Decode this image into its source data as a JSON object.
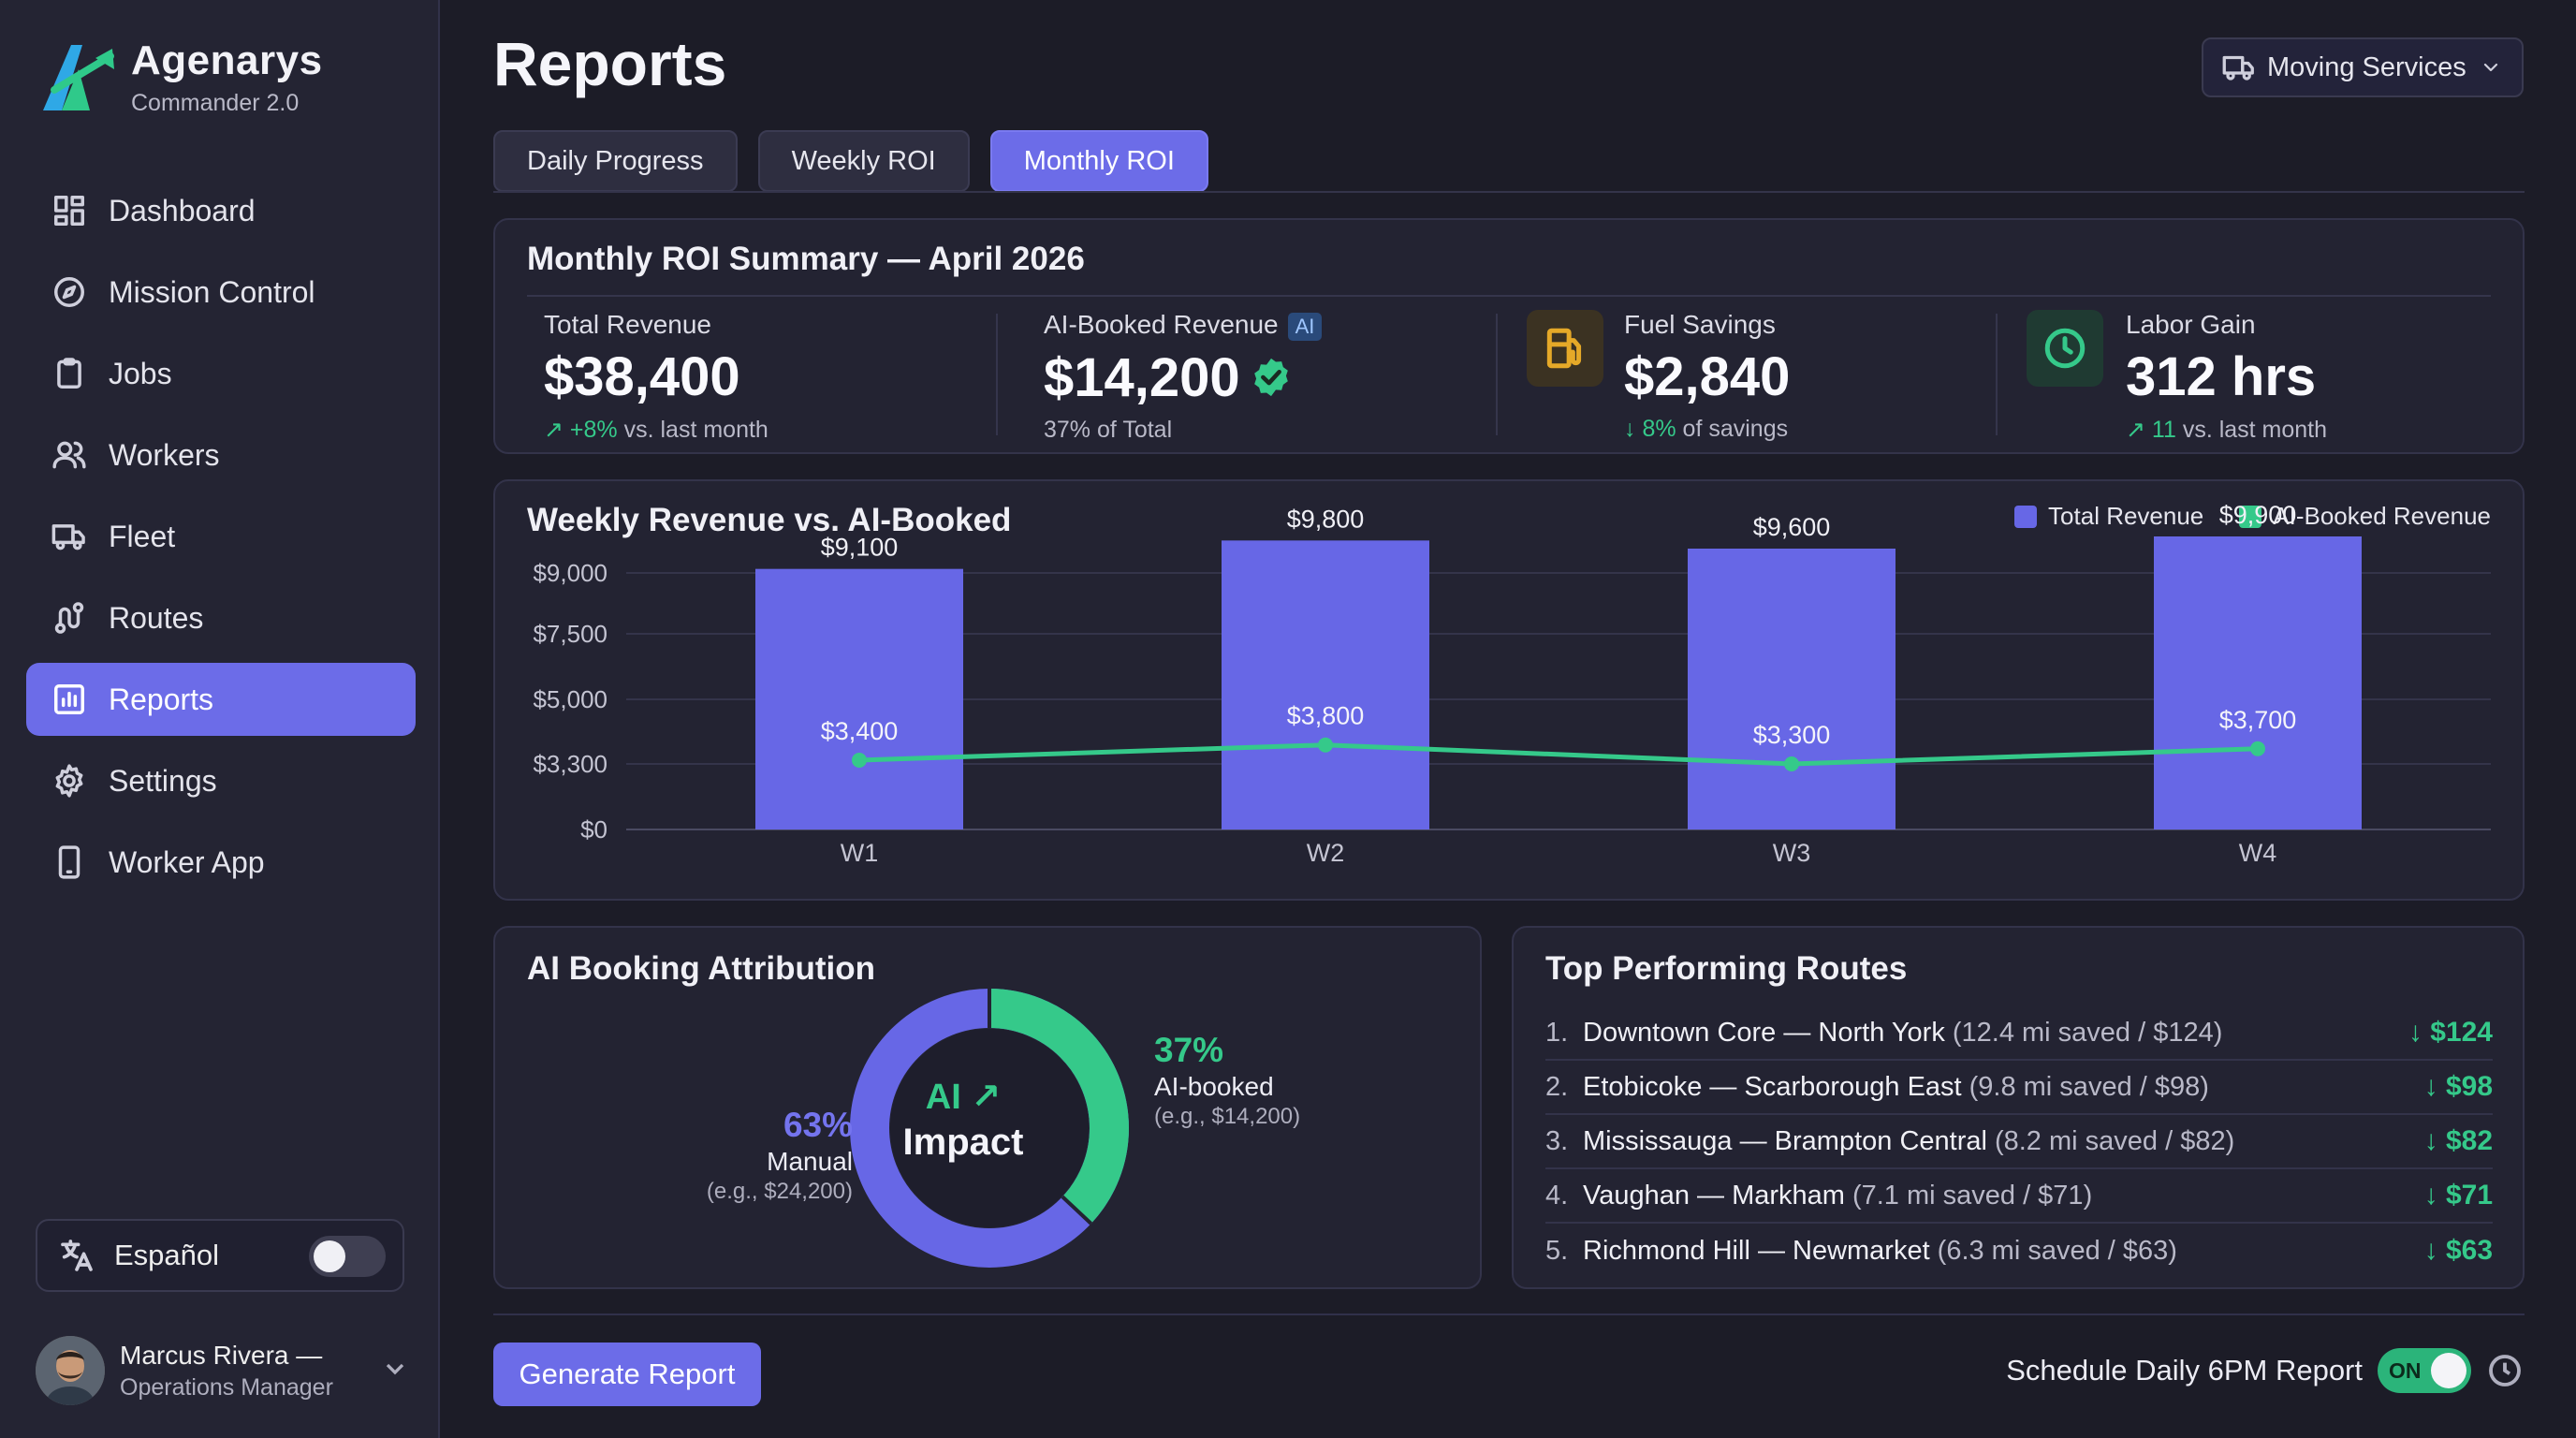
{
  "brand": {
    "name": "Agenarys",
    "subtitle": "Commander 2.0"
  },
  "sidebar": {
    "items": [
      {
        "label": "Dashboard",
        "icon": "dashboard-icon"
      },
      {
        "label": "Mission Control",
        "icon": "compass-icon"
      },
      {
        "label": "Jobs",
        "icon": "clipboard-icon"
      },
      {
        "label": "Workers",
        "icon": "users-icon"
      },
      {
        "label": "Fleet",
        "icon": "truck-icon"
      },
      {
        "label": "Routes",
        "icon": "route-icon"
      },
      {
        "label": "Reports",
        "icon": "reports-icon",
        "active": true
      },
      {
        "label": "Settings",
        "icon": "gear-icon"
      },
      {
        "label": "Worker App",
        "icon": "phone-icon"
      }
    ],
    "language": {
      "label": "Español",
      "enabled": false
    },
    "user": {
      "name": "Marcus Rivera —",
      "role": "Operations Manager"
    }
  },
  "header": {
    "title": "Reports",
    "service_select": {
      "value": "Moving Services"
    },
    "tabs": [
      {
        "label": "Daily Progress"
      },
      {
        "label": "Weekly ROI"
      },
      {
        "label": "Monthly ROI",
        "active": true
      }
    ]
  },
  "summary": {
    "title": "Monthly ROI Summary — April 2026",
    "kpis": [
      {
        "label": "Total Revenue",
        "value": "$38,400",
        "change": "+8%",
        "sub": "vs. last month"
      },
      {
        "label": "AI-Booked Revenue",
        "badge": "AI",
        "value": "$14,200",
        "sub": "37% of Total"
      },
      {
        "label": "Fuel Savings",
        "value": "$2,840",
        "change": "8%",
        "sub": "of savings"
      },
      {
        "label": "Labor Gain",
        "value": "312 hrs",
        "change": "11",
        "sub": "vs. last month"
      }
    ]
  },
  "weekly_chart": {
    "title": "Weekly Revenue vs. AI-Booked",
    "legend": [
      "Total Revenue",
      "AI-Booked Revenue"
    ]
  },
  "chart_data": {
    "type": "bar",
    "title": "Weekly Revenue vs. AI-Booked",
    "categories": [
      "W1",
      "W2",
      "W3",
      "W4"
    ],
    "series": [
      {
        "name": "Total Revenue",
        "type": "bar",
        "values": [
          9100,
          9800,
          9600,
          9900
        ],
        "labels": [
          "$9,100",
          "$9,800",
          "$9,600",
          "$9,900"
        ],
        "color": "#6767e6"
      },
      {
        "name": "AI-Booked Revenue",
        "type": "line",
        "values": [
          3400,
          3800,
          3300,
          3700
        ],
        "labels": [
          "$3,400",
          "$3,800",
          "$3,300",
          "$3,700"
        ],
        "color": "#35c98a"
      }
    ],
    "yticks": [
      "$0",
      "$3,300",
      "$5,000",
      "$7,500",
      "$9,000"
    ],
    "legend_position": "top-right",
    "grid": true
  },
  "attribution": {
    "title": "AI Booking Attribution",
    "manual": {
      "pct": "63%",
      "label": "Manual",
      "example": "(e.g., $24,200)",
      "fraction": 0.63,
      "color": "#6767e6"
    },
    "ai": {
      "pct": "37%",
      "label": "AI-booked",
      "example": "(e.g., $14,200)",
      "fraction": 0.37,
      "color": "#35c98a"
    },
    "center_top": "AI ↗",
    "center_bottom": "Impact"
  },
  "routes": {
    "title": "Top Performing Routes",
    "items": [
      {
        "num": "1.",
        "name": "Downtown Core — North York",
        "detail": "(12.4 mi saved / $124)",
        "value": "↓ $124"
      },
      {
        "num": "2.",
        "name": "Etobicoke — Scarborough East",
        "detail": "(9.8 mi saved / $98)",
        "value": "↓ $98"
      },
      {
        "num": "3.",
        "name": "Mississauga — Brampton Central",
        "detail": "(8.2 mi saved / $82)",
        "value": "↓ $82"
      },
      {
        "num": "4.",
        "name": "Vaughan — Markham",
        "detail": "(7.1 mi saved / $71)",
        "value": "↓ $71"
      },
      {
        "num": "5.",
        "name": "Richmond Hill — Newmarket",
        "detail": "(6.3 mi saved / $63)",
        "value": "↓ $63"
      }
    ]
  },
  "footer": {
    "generate_label": "Generate Report",
    "schedule_label": "Schedule Daily 6PM Report",
    "schedule_toggle": "ON"
  },
  "colors": {
    "accent": "#6c6ce8",
    "green": "#35c98a",
    "amber": "#e5a928"
  }
}
